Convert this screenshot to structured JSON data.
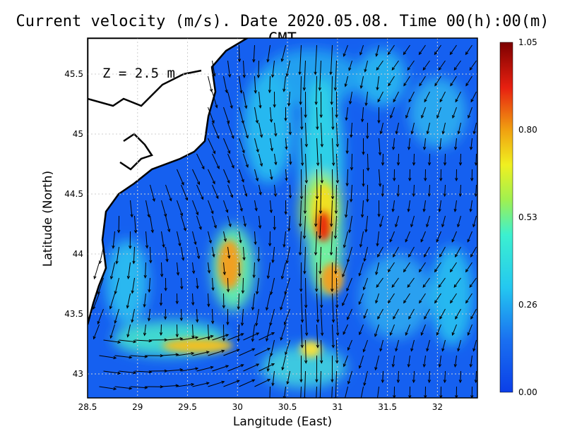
{
  "title": "Current velocity (m/s). Date 2020.05.08. Time 00(h):00(m) GMT",
  "depth_label": "Z = 2.5 m",
  "x_axis": {
    "label": "Langitude (East)",
    "ticks": [
      28.5,
      29,
      29.5,
      30,
      30.5,
      31,
      31.5,
      32
    ],
    "range": [
      28.5,
      32.4
    ]
  },
  "y_axis": {
    "label": "Latitude (North)",
    "ticks": [
      43,
      43.5,
      44,
      44.5,
      45,
      45.5
    ],
    "range": [
      42.8,
      45.8
    ]
  },
  "colorbar": {
    "ticks": [
      "0.00",
      "0.26",
      "0.53",
      "0.80",
      "1.05"
    ],
    "min": 0.0,
    "max": 1.05,
    "colors": [
      "#0b3fe8",
      "#1a8cf0",
      "#24d6f0",
      "#7ff08a",
      "#f0f020",
      "#f09010",
      "#e82010",
      "#8c0000"
    ]
  },
  "land_color": "#ffffff",
  "grid": true
}
